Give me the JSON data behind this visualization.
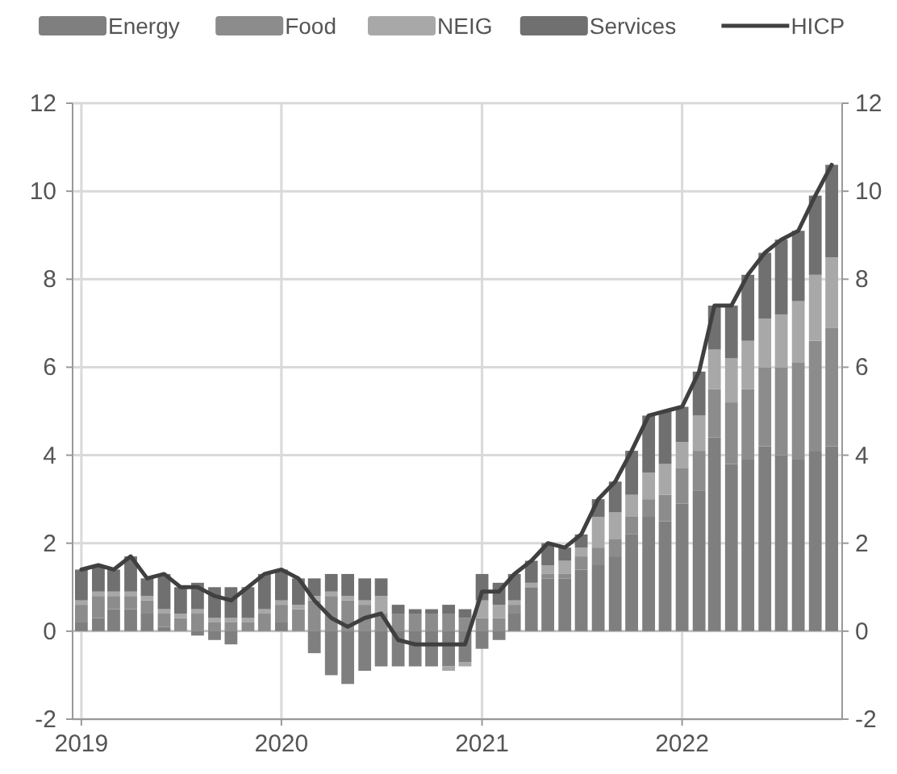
{
  "chart_data": {
    "type": "bar",
    "stacked": true,
    "grid": true,
    "legend": "top",
    "x": [
      "2019-01",
      "2019-02",
      "2019-03",
      "2019-04",
      "2019-05",
      "2019-06",
      "2019-07",
      "2019-08",
      "2019-09",
      "2019-10",
      "2019-11",
      "2019-12",
      "2020-01",
      "2020-02",
      "2020-03",
      "2020-04",
      "2020-05",
      "2020-06",
      "2020-07",
      "2020-08",
      "2020-09",
      "2020-10",
      "2020-11",
      "2020-12",
      "2021-01",
      "2021-02",
      "2021-03",
      "2021-04",
      "2021-05",
      "2021-06",
      "2021-07",
      "2021-08",
      "2021-09",
      "2021-10",
      "2021-11",
      "2021-12",
      "2022-01",
      "2022-02",
      "2022-03",
      "2022-04",
      "2022-05",
      "2022-06",
      "2022-07",
      "2022-08",
      "2022-09",
      "2022-10"
    ],
    "xlim": [
      "2018-12-16",
      "2022-10-20"
    ],
    "xticks": [
      {
        "value": "2019-01-01",
        "label": "2019"
      },
      {
        "value": "2020-01-01",
        "label": "2020"
      },
      {
        "value": "2021-01-01",
        "label": "2021"
      },
      {
        "value": "2022-01-01",
        "label": "2022"
      }
    ],
    "ylim": [
      -2,
      12
    ],
    "yticks": [
      -2,
      0,
      2,
      4,
      6,
      8,
      10,
      12
    ],
    "y2lim": [
      -2,
      12
    ],
    "y2ticks": [
      -2,
      0,
      2,
      4,
      6,
      8,
      10,
      12
    ],
    "series": [
      {
        "name": "Energy",
        "color": "#7f7f7f",
        "values": [
          0.2,
          0.3,
          0.5,
          0.5,
          0.4,
          0.1,
          0.0,
          -0.1,
          -0.2,
          -0.3,
          0.0,
          0.0,
          0.2,
          0.0,
          -0.5,
          -1.0,
          -1.2,
          -0.9,
          -0.8,
          -0.8,
          -0.8,
          -0.8,
          -0.8,
          -0.7,
          -0.4,
          -0.2,
          0.4,
          1.0,
          1.2,
          1.2,
          1.4,
          1.5,
          1.7,
          2.2,
          2.6,
          2.5,
          2.9,
          3.2,
          4.4,
          3.8,
          3.9,
          4.2,
          4.0,
          3.9,
          4.1,
          4.2
        ]
      },
      {
        "name": "Food",
        "color": "#8c8c8c",
        "values": [
          0.4,
          0.5,
          0.3,
          0.3,
          0.3,
          0.3,
          0.3,
          0.4,
          0.2,
          0.2,
          0.2,
          0.4,
          0.4,
          0.5,
          0.7,
          0.8,
          0.7,
          0.6,
          0.4,
          0.4,
          0.4,
          0.4,
          0.4,
          0.3,
          0.3,
          0.3,
          0.2,
          0.0,
          0.1,
          0.1,
          0.3,
          0.4,
          0.4,
          0.4,
          0.4,
          0.6,
          0.8,
          0.9,
          1.1,
          1.4,
          1.6,
          1.8,
          2.0,
          2.2,
          2.5,
          2.7
        ]
      },
      {
        "name": "NEIG",
        "color": "#a8a8a8",
        "values": [
          0.1,
          0.1,
          0.1,
          0.1,
          0.1,
          0.1,
          0.1,
          0.1,
          0.1,
          0.1,
          0.1,
          0.1,
          0.1,
          0.1,
          0.1,
          0.1,
          0.1,
          0.1,
          0.4,
          0.0,
          0.0,
          0.0,
          -0.1,
          -0.1,
          0.4,
          0.3,
          0.1,
          0.1,
          0.2,
          0.3,
          0.2,
          0.7,
          0.6,
          0.5,
          0.6,
          0.7,
          0.6,
          0.8,
          0.9,
          1.0,
          1.1,
          1.1,
          1.2,
          1.4,
          1.5,
          1.6
        ]
      },
      {
        "name": "Services",
        "color": "#707070",
        "values": [
          0.7,
          0.6,
          0.5,
          0.8,
          0.4,
          0.8,
          0.6,
          0.6,
          0.7,
          0.7,
          0.7,
          0.8,
          0.7,
          0.6,
          0.4,
          0.4,
          0.5,
          0.5,
          0.4,
          0.2,
          0.1,
          0.1,
          0.2,
          0.2,
          0.6,
          0.5,
          0.6,
          0.5,
          0.5,
          0.3,
          0.3,
          0.4,
          0.7,
          1.0,
          1.3,
          1.2,
          0.8,
          1.0,
          1.0,
          1.2,
          1.5,
          1.5,
          1.7,
          1.6,
          1.8,
          2.1
        ]
      },
      {
        "name": "HICP",
        "type": "line",
        "color": "#404040",
        "values": [
          1.4,
          1.5,
          1.4,
          1.7,
          1.2,
          1.3,
          1.0,
          1.0,
          0.8,
          0.7,
          1.0,
          1.3,
          1.4,
          1.2,
          0.7,
          0.3,
          0.1,
          0.3,
          0.4,
          -0.2,
          -0.3,
          -0.3,
          -0.3,
          -0.3,
          0.9,
          0.9,
          1.3,
          1.6,
          2.0,
          1.9,
          2.2,
          3.0,
          3.4,
          4.1,
          4.9,
          5.0,
          5.1,
          5.9,
          7.4,
          7.4,
          8.1,
          8.6,
          8.9,
          9.1,
          9.9,
          10.6
        ]
      }
    ]
  }
}
